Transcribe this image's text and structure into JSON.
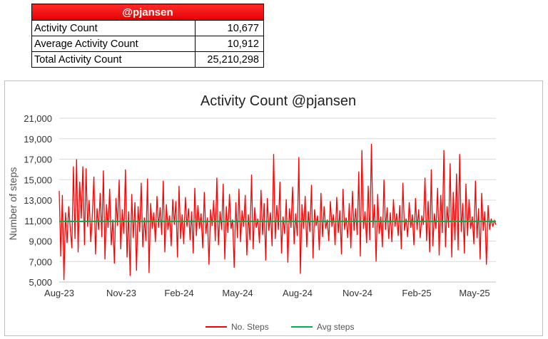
{
  "summary": {
    "header": "@pjansen",
    "rows": [
      {
        "label": "Activity Count",
        "value": "10,677"
      },
      {
        "label": "Average Activity Count",
        "value": "10,912"
      },
      {
        "label": "Total Activity Count",
        "value": "25,210,298"
      }
    ]
  },
  "chart_data": {
    "type": "line",
    "title": "Activity Count @pjansen",
    "ylabel": "Number of steps",
    "xlabel": "",
    "ylim": [
      5000,
      21000
    ],
    "yticks": [
      "5,000",
      "7,000",
      "9,000",
      "11,000",
      "13,000",
      "15,000",
      "17,000",
      "19,000",
      "21,000"
    ],
    "xticks": [
      "Aug-23",
      "Nov-23",
      "Feb-24",
      "May-24",
      "Aug-24",
      "Nov-24",
      "Feb-25",
      "May-25"
    ],
    "x_range": [
      "2023-08-01",
      "2025-07-20"
    ],
    "grid": "horizontal",
    "legend": "bottom",
    "series": [
      {
        "name": "No. Steps",
        "color": "#ff0000",
        "description": "daily step count, fluctuating mostly 8,000-14,000 with peaks up to ~18,500"
      },
      {
        "name": "Avg steps",
        "color": "#00b050",
        "value": 10912
      }
    ],
    "daily_steps_sample": [
      13900,
      7500,
      13500,
      5200,
      11800,
      8800,
      12400,
      10200,
      8300,
      16300,
      9200,
      17000,
      7900,
      14800,
      11200,
      16300,
      8600,
      16100,
      10400,
      13000,
      8900,
      11500,
      15300,
      7700,
      12200,
      10100,
      13700,
      9400,
      15900,
      7200,
      12600,
      10300,
      14100,
      8600,
      11100,
      6800,
      13200,
      10500,
      15000,
      8200,
      12100,
      9700,
      16000,
      7400,
      11900,
      5600,
      13600,
      9300,
      12800,
      6100,
      12400,
      9900,
      14700,
      8400,
      11300,
      9000,
      15100,
      5900,
      12700,
      10200,
      11800,
      8900,
      13400,
      10300,
      12300,
      9600,
      14900,
      7900,
      12600,
      10100,
      11500,
      8500,
      13100,
      10600,
      12900,
      7400,
      14400,
      9200,
      11600,
      8700,
      13300,
      10400,
      12200,
      9100,
      11900,
      7800,
      14200,
      9500,
      12500,
      10200,
      11700,
      8300,
      13800,
      9700,
      11300,
      6700,
      12100,
      10500,
      13000,
      9000,
      15200,
      8600,
      11900,
      10100,
      14600,
      7200,
      12400,
      9800,
      13600,
      10200,
      11100,
      6400,
      12800,
      9300,
      14100,
      8900,
      12000,
      10400,
      13500,
      7600,
      11600,
      9100,
      15500,
      8200,
      12300,
      10300,
      11200,
      8800,
      14000,
      9600,
      12700,
      7100,
      13200,
      10000,
      11800,
      8500,
      17500,
      9200,
      12500,
      10100,
      14800,
      7800,
      11400,
      9700,
      13100,
      6900,
      12200,
      10300,
      14300,
      8700,
      11700,
      9500,
      17200,
      5800,
      12600,
      10200,
      13400,
      8400,
      11900,
      9900,
      14500,
      7300,
      12100,
      10500,
      11500,
      8100,
      13700,
      9400,
      12400,
      10200,
      11100,
      9000,
      12900,
      10400,
      11600,
      8600,
      13300,
      9800,
      12000,
      7700,
      14100,
      10100,
      11300,
      9300,
      12700,
      8300,
      13900,
      10000,
      12200,
      9600,
      15800,
      7500,
      17900,
      10200,
      11900,
      8800,
      14400,
      9100,
      18500,
      10300,
      12600,
      7000,
      13600,
      9700,
      11400,
      8400,
      15000,
      10100,
      12300,
      9200,
      11800,
      8900,
      13100,
      10400,
      11700,
      9500,
      12500,
      8200,
      14700,
      10000,
      11200,
      9400,
      12800,
      10300,
      11600,
      8600,
      13200,
      10100,
      12100,
      9300,
      11500,
      10600,
      15200,
      9000,
      12900,
      7900,
      16000,
      8500,
      11700,
      10200,
      14200,
      7600,
      13500,
      9800,
      17900,
      8400,
      12400,
      10300,
      16600,
      7400,
      13800,
      9100,
      15600,
      8100,
      17500,
      9900,
      12700,
      7800,
      14600,
      9500,
      13100,
      10200,
      11400,
      8700,
      14900,
      9300,
      12200,
      7200,
      13700,
      10000,
      11900,
      6700,
      12500,
      10100,
      11200,
      10400,
      11000,
      10600
    ]
  }
}
